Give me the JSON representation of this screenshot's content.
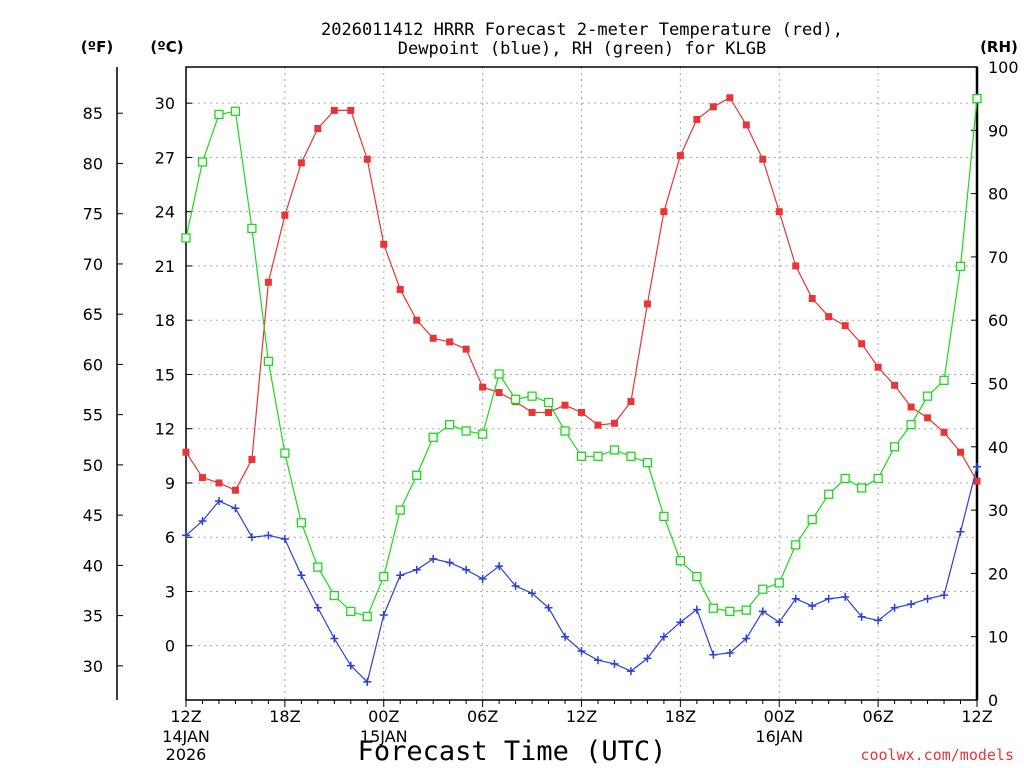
{
  "chart_data": {
    "type": "line",
    "title_line1": "2026011412 HRRR Forecast 2-meter Temperature (red),",
    "title_line2": "Dewpoint (blue), RH (green) for KLGB",
    "xlabel": "Forecast Time (UTC)",
    "credit": "coolwx.com/models",
    "axis_units": {
      "fahrenheit": "(ºF)",
      "celsius": "(ºC)",
      "rh": "(RH)"
    },
    "x_range": [
      0,
      48
    ],
    "celsius_range": [
      -3,
      32
    ],
    "rh_range": [
      0,
      100
    ],
    "fahrenheit_range": [
      26.6,
      89.6
    ],
    "celsius_ticks": [
      0,
      3,
      6,
      9,
      12,
      15,
      18,
      21,
      24,
      27,
      30
    ],
    "fahrenheit_ticks": [
      30,
      35,
      40,
      45,
      50,
      55,
      60,
      65,
      70,
      75,
      80,
      85
    ],
    "rh_ticks": [
      0,
      10,
      20,
      30,
      40,
      50,
      60,
      70,
      80,
      90,
      100
    ],
    "x_ticks": [
      {
        "x": 0,
        "label": "12Z"
      },
      {
        "x": 6,
        "label": "18Z"
      },
      {
        "x": 12,
        "label": "00Z"
      },
      {
        "x": 18,
        "label": "06Z"
      },
      {
        "x": 24,
        "label": "12Z"
      },
      {
        "x": 30,
        "label": "18Z"
      },
      {
        "x": 36,
        "label": "00Z"
      },
      {
        "x": 42,
        "label": "06Z"
      },
      {
        "x": 48,
        "label": "12Z"
      }
    ],
    "date_labels": [
      {
        "x": 0,
        "line1": "14JAN",
        "line2": "2026"
      },
      {
        "x": 12,
        "line1": "15JAN",
        "line2": ""
      },
      {
        "x": 36,
        "line1": "16JAN",
        "line2": ""
      }
    ],
    "series": [
      {
        "name": "2-meter Temperature",
        "axis": "celsius",
        "color": "#e83535",
        "marker": "filled-square",
        "x": [
          0,
          1,
          2,
          3,
          4,
          5,
          6,
          7,
          8,
          9,
          10,
          11,
          12,
          13,
          14,
          15,
          16,
          17,
          18,
          19,
          20,
          21,
          22,
          23,
          24,
          25,
          26,
          27,
          28,
          29,
          30,
          31,
          32,
          33,
          34,
          35,
          36,
          37,
          38,
          39,
          40,
          41,
          42,
          43,
          44,
          45,
          46,
          47,
          48
        ],
        "values": [
          10.7,
          9.3,
          9.0,
          8.6,
          10.3,
          20.1,
          23.8,
          26.7,
          28.6,
          29.6,
          29.6,
          26.9,
          22.2,
          19.7,
          18.0,
          17.0,
          16.8,
          16.4,
          14.3,
          14.0,
          13.5,
          12.9,
          12.9,
          13.3,
          12.9,
          12.2,
          12.3,
          13.5,
          18.9,
          24.0,
          27.1,
          29.1,
          29.8,
          30.3,
          28.8,
          26.9,
          24.0,
          21.0,
          19.2,
          18.2,
          17.7,
          16.7,
          15.4,
          14.4,
          13.2,
          12.6,
          11.8,
          10.7,
          9.1
        ]
      },
      {
        "name": "Dewpoint",
        "axis": "celsius",
        "color": "#2a3fd8",
        "marker": "plus",
        "x": [
          0,
          1,
          2,
          3,
          4,
          5,
          6,
          7,
          8,
          9,
          10,
          11,
          12,
          13,
          14,
          15,
          16,
          17,
          18,
          19,
          20,
          21,
          22,
          23,
          24,
          25,
          26,
          27,
          28,
          29,
          30,
          31,
          32,
          33,
          34,
          35,
          36,
          37,
          38,
          39,
          40,
          41,
          42,
          43,
          44,
          45,
          46,
          47,
          48
        ],
        "values": [
          6.1,
          6.9,
          8.0,
          7.6,
          6.0,
          6.1,
          5.9,
          3.9,
          2.1,
          0.4,
          -1.1,
          -2.0,
          1.7,
          3.9,
          4.2,
          4.8,
          4.6,
          4.2,
          3.7,
          4.4,
          3.3,
          2.9,
          2.1,
          0.5,
          -0.3,
          -0.8,
          -1.0,
          -1.4,
          -0.7,
          0.5,
          1.3,
          2.0,
          -0.5,
          -0.4,
          0.4,
          1.9,
          1.3,
          2.6,
          2.2,
          2.6,
          2.7,
          1.6,
          1.4,
          2.1,
          2.3,
          2.6,
          2.8,
          6.3,
          9.9
        ]
      },
      {
        "name": "RH",
        "axis": "rh",
        "color": "#1ed81e",
        "marker": "open-square",
        "x": [
          0,
          1,
          2,
          3,
          4,
          5,
          6,
          7,
          8,
          9,
          10,
          11,
          12,
          13,
          14,
          15,
          16,
          17,
          18,
          19,
          20,
          21,
          22,
          23,
          24,
          25,
          26,
          27,
          28,
          29,
          30,
          31,
          32,
          33,
          34,
          35,
          36,
          37,
          38,
          39,
          40,
          41,
          42,
          43,
          44,
          45,
          46,
          47,
          48
        ],
        "values": [
          73,
          85,
          92.5,
          93,
          74.5,
          53.5,
          39,
          28,
          21,
          16.5,
          14,
          13.2,
          19.5,
          30,
          35.5,
          41.5,
          43.5,
          42.5,
          42,
          51.5,
          47.5,
          48,
          47,
          42.5,
          38.5,
          38.5,
          39.5,
          38.5,
          37.5,
          29,
          22,
          19.5,
          14.5,
          14,
          14.2,
          17.5,
          18.5,
          24.5,
          28.5,
          32.5,
          35,
          33.5,
          35,
          40,
          43.5,
          48,
          50.5,
          68.5,
          95
        ]
      }
    ]
  }
}
